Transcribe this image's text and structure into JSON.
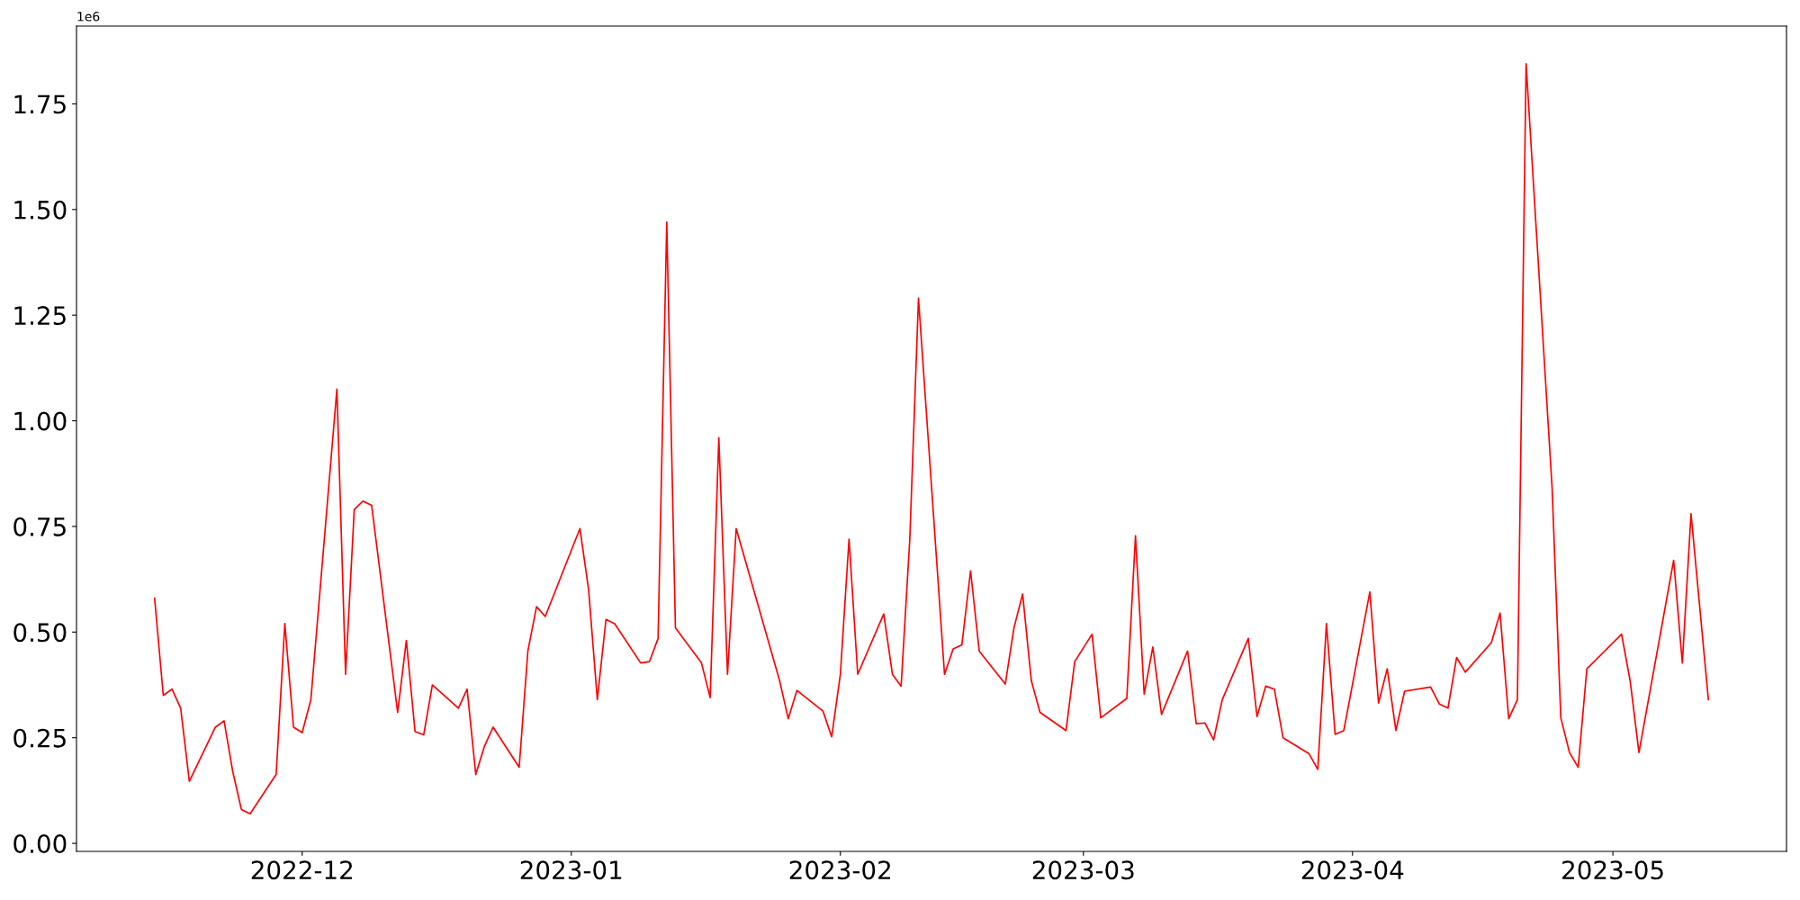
{
  "chart_data": {
    "type": "line",
    "x": [
      "2022-11-14",
      "2022-11-15",
      "2022-11-16",
      "2022-11-17",
      "2022-11-18",
      "2022-11-21",
      "2022-11-22",
      "2022-11-23",
      "2022-11-24",
      "2022-11-25",
      "2022-11-28",
      "2022-11-29",
      "2022-11-30",
      "2022-12-01",
      "2022-12-02",
      "2022-12-05",
      "2022-12-06",
      "2022-12-07",
      "2022-12-08",
      "2022-12-09",
      "2022-12-12",
      "2022-12-13",
      "2022-12-14",
      "2022-12-15",
      "2022-12-16",
      "2022-12-19",
      "2022-12-20",
      "2022-12-21",
      "2022-12-22",
      "2022-12-23",
      "2022-12-26",
      "2022-12-27",
      "2022-12-28",
      "2022-12-29",
      "2023-01-02",
      "2023-01-03",
      "2023-01-04",
      "2023-01-05",
      "2023-01-06",
      "2023-01-09",
      "2023-01-10",
      "2023-01-11",
      "2023-01-12",
      "2023-01-13",
      "2023-01-16",
      "2023-01-17",
      "2023-01-18",
      "2023-01-19",
      "2023-01-20",
      "2023-01-25",
      "2023-01-26",
      "2023-01-27",
      "2023-01-30",
      "2023-01-31",
      "2023-02-01",
      "2023-02-02",
      "2023-02-03",
      "2023-02-06",
      "2023-02-07",
      "2023-02-08",
      "2023-02-09",
      "2023-02-10",
      "2023-02-13",
      "2023-02-14",
      "2023-02-15",
      "2023-02-16",
      "2023-02-17",
      "2023-02-20",
      "2023-02-21",
      "2023-02-22",
      "2023-02-23",
      "2023-02-24",
      "2023-02-27",
      "2023-02-28",
      "2023-03-02",
      "2023-03-03",
      "2023-03-06",
      "2023-03-07",
      "2023-03-08",
      "2023-03-09",
      "2023-03-10",
      "2023-03-13",
      "2023-03-14",
      "2023-03-15",
      "2023-03-16",
      "2023-03-17",
      "2023-03-20",
      "2023-03-21",
      "2023-03-22",
      "2023-03-23",
      "2023-03-24",
      "2023-03-27",
      "2023-03-28",
      "2023-03-29",
      "2023-03-30",
      "2023-03-31",
      "2023-04-03",
      "2023-04-04",
      "2023-04-05",
      "2023-04-06",
      "2023-04-07",
      "2023-04-10",
      "2023-04-11",
      "2023-04-12",
      "2023-04-13",
      "2023-04-14",
      "2023-04-17",
      "2023-04-18",
      "2023-04-19",
      "2023-04-20",
      "2023-04-21",
      "2023-04-24",
      "2023-04-25",
      "2023-04-26",
      "2023-04-27",
      "2023-04-28",
      "2023-05-02",
      "2023-05-03",
      "2023-05-04",
      "2023-05-08",
      "2023-05-09",
      "2023-05-10",
      "2023-05-11",
      "2023-05-12"
    ],
    "series": [
      {
        "color": "#ff0000",
        "values": [
          0.58,
          0.35,
          0.365,
          0.32,
          0.147,
          0.275,
          0.29,
          0.17,
          0.08,
          0.07,
          0.163,
          0.52,
          0.275,
          0.262,
          0.34,
          1.075,
          0.4,
          0.79,
          0.81,
          0.8,
          0.31,
          0.48,
          0.265,
          0.257,
          0.375,
          0.32,
          0.365,
          0.163,
          0.23,
          0.275,
          0.18,
          0.455,
          0.56,
          0.537,
          0.745,
          0.6,
          0.34,
          0.53,
          0.52,
          0.427,
          0.43,
          0.485,
          1.47,
          0.51,
          0.427,
          0.345,
          0.96,
          0.4,
          0.745,
          0.385,
          0.295,
          0.362,
          0.313,
          0.252,
          0.4,
          0.72,
          0.4,
          0.543,
          0.4,
          0.372,
          0.72,
          1.29,
          0.4,
          0.46,
          0.47,
          0.645,
          0.455,
          0.377,
          0.51,
          0.59,
          0.385,
          0.31,
          0.267,
          0.43,
          0.495,
          0.297,
          0.343,
          0.728,
          0.353,
          0.465,
          0.305,
          0.455,
          0.283,
          0.285,
          0.245,
          0.34,
          0.485,
          0.3,
          0.372,
          0.365,
          0.25,
          0.212,
          0.175,
          0.52,
          0.258,
          0.267,
          0.595,
          0.332,
          0.413,
          0.267,
          0.36,
          0.37,
          0.33,
          0.32,
          0.44,
          0.405,
          0.475,
          0.545,
          0.295,
          0.34,
          1.845,
          0.84,
          0.297,
          0.215,
          0.18,
          0.413,
          0.495,
          0.383,
          0.215,
          0.67,
          0.427,
          0.78,
          0.56,
          0.34
        ]
      }
    ],
    "xlim": [
      "2022-11-05",
      "2023-05-21"
    ],
    "xticks": [
      {
        "value": "2022-12-01",
        "label": "2022-12"
      },
      {
        "value": "2023-01-01",
        "label": "2023-01"
      },
      {
        "value": "2023-02-01",
        "label": "2023-02"
      },
      {
        "value": "2023-03-01",
        "label": "2023-03"
      },
      {
        "value": "2023-04-01",
        "label": "2023-04"
      },
      {
        "value": "2023-05-01",
        "label": "2023-05"
      }
    ],
    "ylim": [
      -0.019,
      1.934
    ],
    "yticks": [
      {
        "value": 0,
        "label": "0.00"
      },
      0.25,
      {
        "value": 0.5,
        "label": "0.50"
      },
      0.75,
      {
        "value": 1,
        "label": "1.00"
      },
      1.25,
      {
        "value": 1.5,
        "label": "1.50"
      },
      1.75
    ],
    "annotations": [
      "1e6"
    ],
    "marker": "none",
    "line_style": "solid"
  }
}
